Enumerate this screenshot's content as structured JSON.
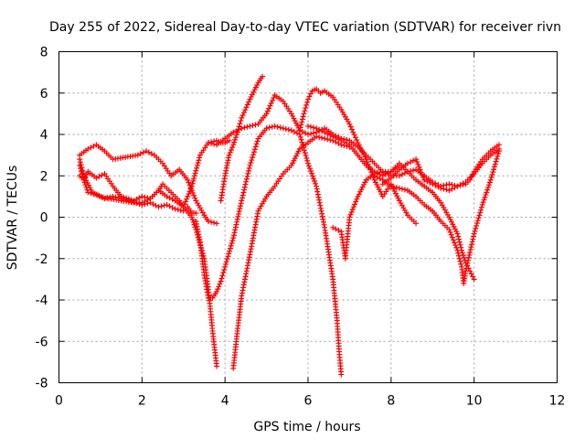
{
  "chart_data": {
    "type": "scatter",
    "title": "Day 255 of 2022, Sidereal Day-to-day VTEC variation (SDTVAR) for receiver rivn",
    "xlabel": "GPS time / hours",
    "ylabel": "SDTVAR / TECUs",
    "xlim": [
      0,
      12
    ],
    "ylim": [
      -8,
      8
    ],
    "xticks": [
      "0",
      "2",
      "4",
      "6",
      "8",
      "10",
      "12"
    ],
    "yticks": [
      "8",
      "6",
      "4",
      "2",
      "0",
      "-2",
      "-4",
      "-6",
      "-8"
    ],
    "grid": true,
    "marker": "+",
    "series_color": "#ff0000",
    "series": [
      {
        "x": [
          0.5,
          0.7,
          0.9,
          1.1,
          1.3,
          1.6,
          1.9,
          2.1,
          2.3,
          2.5,
          2.7,
          2.9,
          3.1,
          3.3,
          3.5,
          3.6,
          3.8
        ],
        "y": [
          3.0,
          3.3,
          3.5,
          3.2,
          2.8,
          2.9,
          3.0,
          3.2,
          3.0,
          2.6,
          2.0,
          2.3,
          1.8,
          0.8,
          0.1,
          -0.2,
          -0.3
        ]
      },
      {
        "x": [
          0.5,
          0.6,
          0.7,
          0.9,
          1.1,
          1.3,
          1.5,
          1.8,
          2.0,
          2.2,
          2.4,
          2.6,
          2.8,
          3.0,
          3.2,
          3.3,
          3.5,
          3.6,
          3.7,
          3.8
        ],
        "y": [
          2.0,
          1.8,
          2.2,
          1.9,
          2.1,
          1.5,
          1.0,
          0.8,
          1.0,
          0.9,
          1.3,
          1.0,
          0.8,
          0.5,
          0.0,
          -0.6,
          -2.0,
          -3.5,
          -5.5,
          -7.2
        ]
      },
      {
        "x": [
          0.5,
          0.6,
          0.8,
          1.0,
          1.2,
          1.5,
          1.8,
          2.0,
          2.2,
          2.4,
          2.5,
          2.7,
          2.9,
          3.0,
          3.2,
          3.4,
          3.6,
          3.8,
          3.9,
          4.0,
          4.1
        ],
        "y": [
          2.8,
          2.0,
          1.2,
          1.0,
          0.9,
          0.8,
          0.7,
          0.7,
          0.9,
          1.3,
          1.6,
          1.2,
          0.8,
          0.5,
          1.5,
          3.0,
          3.6,
          3.7,
          3.6,
          3.6,
          3.7
        ]
      },
      {
        "x": [
          0.5,
          0.6,
          0.7,
          0.9,
          1.1,
          1.3,
          1.5,
          1.7,
          2.0,
          2.2,
          2.4,
          2.6,
          2.8,
          3.0,
          3.1,
          3.2,
          3.3
        ],
        "y": [
          2.5,
          1.8,
          1.2,
          1.1,
          0.9,
          1.0,
          0.9,
          0.8,
          0.6,
          0.7,
          0.5,
          0.6,
          0.4,
          0.3,
          0.5,
          0.2,
          0.2
        ]
      },
      {
        "x": [
          3.3,
          3.4,
          3.5,
          3.6,
          3.7,
          3.8,
          3.9,
          4.0,
          4.2,
          4.4,
          4.6,
          4.8,
          5.0,
          5.2,
          5.4,
          5.6,
          5.8,
          6.0,
          6.2,
          6.4,
          6.6,
          6.7,
          6.75,
          6.8
        ],
        "y": [
          -0.2,
          -1.2,
          -2.8,
          -3.9,
          -3.9,
          -3.6,
          -3.1,
          -2.4,
          -1.0,
          0.8,
          2.5,
          3.8,
          4.3,
          4.4,
          4.3,
          4.2,
          4.0,
          2.6,
          1.5,
          -0.5,
          -3.0,
          -5.0,
          -6.5,
          -7.6
        ]
      },
      {
        "x": [
          3.9,
          4.0,
          4.1,
          4.2,
          4.3,
          4.4,
          4.6,
          4.8,
          4.9
        ],
        "y": [
          0.8,
          2.0,
          3.0,
          3.5,
          4.1,
          4.8,
          5.7,
          6.5,
          6.8
        ]
      },
      {
        "x": [
          4.2,
          4.3,
          4.4,
          4.6,
          4.8,
          5.0,
          5.2,
          5.4,
          5.6,
          5.8,
          6.0,
          6.2,
          6.4,
          6.6,
          6.8,
          7.0
        ],
        "y": [
          -7.3,
          -5.5,
          -3.8,
          -1.8,
          0.3,
          1.0,
          1.5,
          2.1,
          2.5,
          3.3,
          3.6,
          3.9,
          3.8,
          3.7,
          3.5,
          3.4
        ]
      },
      {
        "x": [
          3.6,
          3.8,
          4.0,
          4.2,
          4.4,
          4.6,
          4.8,
          5.0,
          5.2,
          5.4,
          5.6,
          5.8,
          6.0,
          6.2,
          6.4,
          6.6,
          6.8,
          7.0,
          7.2,
          7.4,
          7.6,
          7.8,
          8.0,
          8.2
        ],
        "y": [
          3.6,
          3.5,
          3.8,
          4.1,
          4.3,
          4.4,
          4.5,
          5.0,
          5.9,
          5.6,
          5.0,
          4.2,
          4.0,
          4.1,
          4.3,
          4.0,
          3.8,
          3.7,
          3.4,
          3.0,
          2.6,
          2.2,
          2.2,
          2.5
        ]
      },
      {
        "x": [
          5.8,
          5.9,
          6.0,
          6.1,
          6.2,
          6.3,
          6.4,
          6.6,
          6.8,
          7.0,
          7.2,
          7.4,
          7.6,
          7.8,
          8.0,
          8.2,
          8.4,
          8.6
        ],
        "y": [
          4.2,
          5.0,
          5.7,
          6.1,
          6.2,
          6.0,
          6.1,
          5.8,
          5.2,
          4.5,
          3.6,
          2.8,
          1.8,
          1.0,
          1.6,
          0.8,
          0.1,
          -0.3
        ]
      },
      {
        "x": [
          6.6,
          6.8,
          6.9,
          7.0,
          7.2,
          7.4,
          7.6,
          7.8,
          8.0,
          8.2,
          8.4,
          8.6,
          8.8,
          9.0,
          9.2,
          9.4,
          9.6,
          9.8,
          10.0,
          10.2,
          10.4,
          10.6
        ],
        "y": [
          -0.5,
          -0.7,
          -2.0,
          0.0,
          1.0,
          1.8,
          2.1,
          2.2,
          2.0,
          2.0,
          2.2,
          2.3,
          2.0,
          1.7,
          1.5,
          1.6,
          1.5,
          1.7,
          2.1,
          2.6,
          3.0,
          3.3
        ]
      },
      {
        "x": [
          6.0,
          6.2,
          6.4,
          6.6,
          6.8,
          7.0,
          7.2,
          7.4,
          7.6,
          7.8,
          8.0,
          8.2,
          8.4,
          8.6,
          8.8,
          9.0,
          9.2,
          9.4,
          9.6,
          9.7,
          9.8,
          9.9,
          10.0
        ],
        "y": [
          4.4,
          4.3,
          4.1,
          3.9,
          3.7,
          3.5,
          3.0,
          2.5,
          2.2,
          2.0,
          2.2,
          2.6,
          2.2,
          1.8,
          1.5,
          1.2,
          0.7,
          0.0,
          -0.8,
          -1.6,
          -2.2,
          -2.6,
          -3.0
        ]
      },
      {
        "x": [
          7.8,
          8.0,
          8.2,
          8.4,
          8.6,
          8.8,
          9.0,
          9.2,
          9.4,
          9.6,
          9.8,
          9.9,
          10.0,
          10.2,
          10.4,
          10.6
        ],
        "y": [
          1.6,
          1.9,
          2.3,
          2.6,
          2.8,
          1.8,
          1.6,
          1.4,
          1.3,
          1.5,
          1.6,
          1.8,
          2.2,
          2.8,
          3.2,
          3.5
        ]
      },
      {
        "x": [
          7.6,
          7.8,
          8.0,
          8.2,
          8.4,
          8.6,
          8.8,
          9.0,
          9.2,
          9.4,
          9.6,
          9.7,
          9.75,
          9.8,
          10.0,
          10.2,
          10.4,
          10.6
        ],
        "y": [
          2.0,
          1.8,
          1.5,
          1.4,
          1.3,
          1.0,
          0.6,
          0.3,
          -0.2,
          -0.6,
          -1.6,
          -2.4,
          -3.2,
          -2.6,
          -0.8,
          0.6,
          1.8,
          3.2
        ]
      }
    ]
  }
}
